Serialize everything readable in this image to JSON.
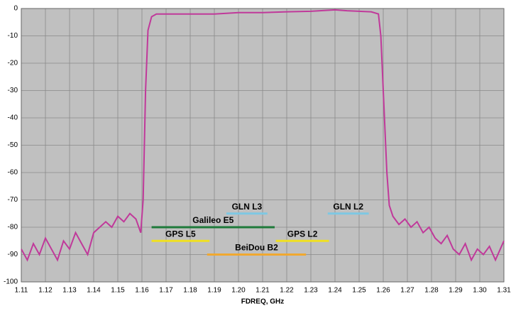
{
  "chart_data": {
    "type": "line",
    "xlabel": "FDREQ, GHz",
    "xlim": [
      1.11,
      1.31
    ],
    "ylim": [
      -100,
      0
    ],
    "xticks": [
      1.11,
      1.12,
      1.13,
      1.14,
      1.15,
      1.16,
      1.17,
      1.18,
      1.19,
      {
        "value": 1.2,
        "label": "1.20"
      },
      1.21,
      1.22,
      1.23,
      1.24,
      1.25,
      1.26,
      1.27,
      1.28,
      1.29,
      {
        "value": 1.3,
        "label": "1.30"
      },
      1.31
    ],
    "yticks": [
      0,
      -10,
      -20,
      -30,
      -40,
      -50,
      -60,
      -70,
      -80,
      -90,
      -100
    ],
    "grid": true,
    "series": [
      {
        "color": "#c0399a",
        "x": [
          1.11,
          1.1125,
          1.115,
          1.1175,
          1.12,
          1.1225,
          1.125,
          1.1275,
          1.13,
          1.1325,
          1.135,
          1.1375,
          1.14,
          1.1425,
          1.145,
          1.1475,
          1.15,
          1.1525,
          1.155,
          1.1575,
          1.1595,
          1.1605,
          1.1615,
          1.1625,
          1.164,
          1.166,
          1.17,
          1.18,
          1.19,
          1.2,
          1.21,
          1.22,
          1.23,
          1.24,
          1.245,
          1.25,
          1.255,
          1.258,
          1.259,
          1.2605,
          1.2615,
          1.2625,
          1.264,
          1.2665,
          1.269,
          1.2715,
          1.274,
          1.2765,
          1.279,
          1.2815,
          1.284,
          1.2865,
          1.289,
          1.2915,
          1.294,
          1.2965,
          1.299,
          1.3015,
          1.304,
          1.3065,
          1.31
        ],
        "values": [
          -88,
          -92,
          -86,
          -90,
          -84,
          -88,
          -92,
          -85,
          -88,
          -82,
          -86,
          -90,
          -82,
          -80,
          -78,
          -80,
          -76,
          -78,
          -75,
          -77,
          -82,
          -70,
          -30,
          -8,
          -3,
          -2,
          -2,
          -2,
          -2,
          -1.5,
          -1.5,
          -1.2,
          -1,
          -0.5,
          -0.8,
          -1,
          -1.2,
          -2,
          -10,
          -40,
          -60,
          -72,
          -76,
          -79,
          -77,
          -80,
          -78,
          -82,
          -80,
          -84,
          -86,
          -83,
          -88,
          -90,
          -86,
          -92,
          -88,
          -90,
          -87,
          -92,
          -85
        ]
      }
    ],
    "bands": [
      {
        "name": "GLN L3",
        "x": [
          1.195,
          1.212
        ],
        "value": -75,
        "color": "#7ec8e3"
      },
      {
        "name": "GLN L2",
        "x": [
          1.237,
          1.254
        ],
        "value": -75,
        "color": "#7ec8e3"
      },
      {
        "name": "Galileo E5",
        "x": [
          1.164,
          1.215
        ],
        "value": -80,
        "color": "#1f7a3a"
      },
      {
        "name": "GPS L5",
        "x": [
          1.164,
          1.188
        ],
        "value": -85,
        "color": "#f0e020"
      },
      {
        "name": "GPS L2",
        "x": [
          1.2155,
          1.2375
        ],
        "value": -85,
        "color": "#f0e020"
      },
      {
        "name": "BeiDou B2",
        "x": [
          1.187,
          1.228
        ],
        "value": -90,
        "color": "#f0a830"
      }
    ]
  }
}
